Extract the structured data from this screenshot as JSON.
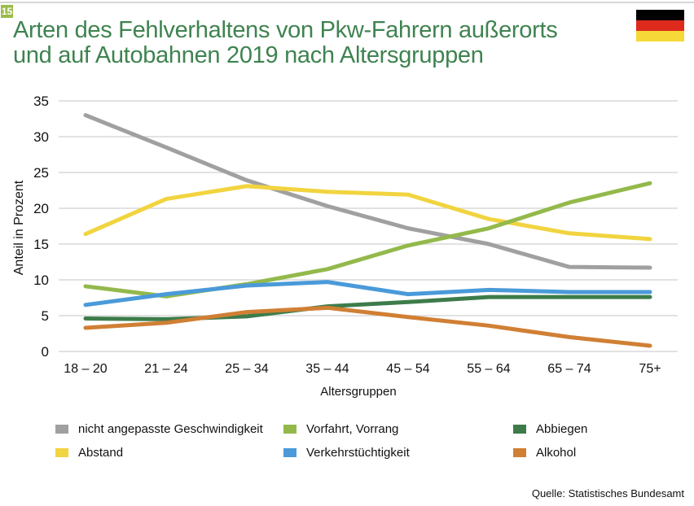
{
  "badge": "15",
  "title_line1": "Arten des Fehlverhaltens von Pkw-Fahrern außerorts",
  "title_line2": "und auf Autobahnen 2019 nach Altersgruppen",
  "flag_colors": [
    "#000000",
    "#dd2a1c",
    "#f6d838"
  ],
  "source": "Quelle: Statistisches Bundesamt",
  "chart_data": {
    "type": "line",
    "xlabel": "Altersgruppen",
    "ylabel": "Anteil in Prozent",
    "categories": [
      "18 – 20",
      "21 – 24",
      "25 – 34",
      "35 – 44",
      "45 – 54",
      "55 – 64",
      "65 – 74",
      "75+"
    ],
    "ylim": [
      0,
      35
    ],
    "yticks": [
      0,
      5,
      10,
      15,
      20,
      25,
      30,
      35
    ],
    "grid": true,
    "legend_position": "bottom",
    "series": [
      {
        "name": "nicht angepasste Geschwindigkeit",
        "color": "#a0a0a0",
        "values": [
          33.0,
          28.5,
          23.9,
          20.3,
          17.2,
          15.0,
          11.8,
          11.7
        ]
      },
      {
        "name": "Vorfahrt, Vorrang",
        "color": "#93b94b",
        "values": [
          9.1,
          7.7,
          9.4,
          11.5,
          14.8,
          17.2,
          20.8,
          23.5
        ]
      },
      {
        "name": "Abbiegen",
        "color": "#3d7c4a",
        "values": [
          4.6,
          4.5,
          4.9,
          6.3,
          6.9,
          7.6,
          7.6,
          7.6
        ]
      },
      {
        "name": "Abstand",
        "color": "#f1d43f",
        "values": [
          16.4,
          21.3,
          23.1,
          22.3,
          21.9,
          18.5,
          16.5,
          15.7
        ]
      },
      {
        "name": "Verkehrstüchtigkeit",
        "color": "#4a9ad9",
        "values": [
          6.5,
          8.0,
          9.2,
          9.7,
          8.0,
          8.6,
          8.3,
          8.3
        ]
      },
      {
        "name": "Alkohol",
        "color": "#d07f34",
        "values": [
          3.3,
          4.0,
          5.5,
          6.1,
          4.8,
          3.6,
          2.0,
          0.8
        ]
      }
    ]
  }
}
